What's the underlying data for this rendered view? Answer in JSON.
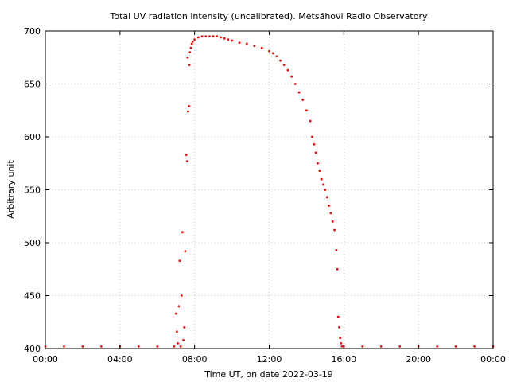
{
  "chart_data": {
    "type": "scatter",
    "title": "Total UV radiation intensity (uncalibrated). Metsähovi Radio Observatory",
    "xlabel": "Time UT, on date 2022-03-19",
    "ylabel": "Arbitrary unit",
    "x_unit": "hours UT",
    "xlim": [
      0,
      24
    ],
    "ylim": [
      400,
      700
    ],
    "x_ticks": [
      0,
      4,
      8,
      12,
      16,
      20,
      24
    ],
    "x_tick_labels": [
      "00:00",
      "04:00",
      "08:00",
      "12:00",
      "16:00",
      "20:00",
      "00:00"
    ],
    "y_ticks": [
      400,
      450,
      500,
      550,
      600,
      650,
      700
    ],
    "y_tick_labels": [
      "400",
      "450",
      "500",
      "550",
      "600",
      "650",
      "700"
    ],
    "grid": true,
    "legend": "none",
    "series": [
      {
        "color": "#ff0000",
        "x": [
          0.0,
          1.0,
          2.0,
          3.0,
          4.0,
          5.0,
          6.0,
          6.9,
          7.0,
          7.05,
          7.1,
          7.15,
          7.2,
          7.25,
          7.3,
          7.35,
          7.4,
          7.45,
          7.5,
          7.55,
          7.6,
          7.62,
          7.65,
          7.7,
          7.72,
          7.75,
          7.8,
          7.85,
          7.9,
          8.0,
          8.2,
          8.4,
          8.6,
          8.8,
          9.0,
          9.2,
          9.4,
          9.6,
          9.8,
          10.0,
          10.4,
          10.8,
          11.2,
          11.6,
          12.0,
          12.2,
          12.4,
          12.6,
          12.8,
          13.0,
          13.2,
          13.4,
          13.6,
          13.8,
          14.0,
          14.2,
          14.3,
          14.4,
          14.5,
          14.6,
          14.7,
          14.8,
          14.9,
          15.0,
          15.1,
          15.2,
          15.3,
          15.4,
          15.5,
          15.6,
          15.65,
          15.7,
          15.75,
          15.8,
          15.85,
          15.9,
          16.0,
          17.0,
          18.0,
          19.0,
          20.0,
          21.0,
          22.0,
          23.0,
          24.0
        ],
        "y": [
          402,
          402,
          402,
          402,
          402,
          402,
          402,
          402,
          433,
          416,
          405,
          440,
          483,
          402,
          450,
          510,
          408,
          420,
          492,
          583,
          577,
          675,
          624,
          629,
          668,
          680,
          684,
          688,
          690,
          692,
          694,
          695,
          695,
          695,
          695,
          695,
          694,
          693,
          692,
          691,
          689,
          688,
          686,
          684,
          681,
          679,
          676,
          672,
          668,
          663,
          657,
          650,
          642,
          635,
          625,
          615,
          600,
          593,
          585,
          575,
          568,
          560,
          555,
          550,
          543,
          535,
          528,
          520,
          512,
          493,
          475,
          430,
          420,
          410,
          405,
          402,
          402,
          402,
          402,
          402,
          402,
          402,
          402,
          402,
          402
        ]
      }
    ]
  }
}
